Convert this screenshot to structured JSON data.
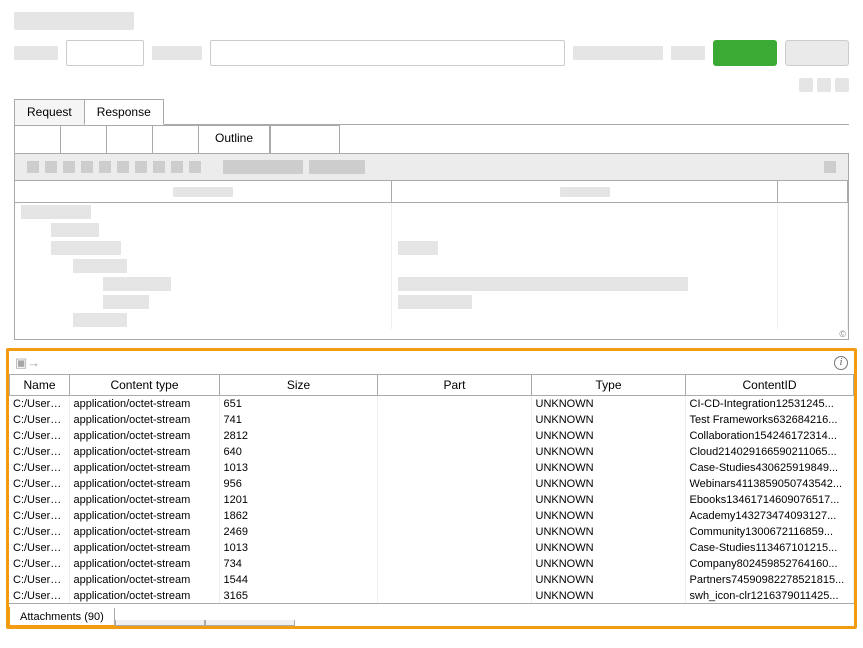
{
  "colors": {
    "highlight": "#f39c12",
    "green_btn": "#3aaa35",
    "skeleton": "#e5e5e5",
    "border": "#aaaaaa"
  },
  "tabs": {
    "request": "Request",
    "response": "Response",
    "outline": "Outline"
  },
  "tree_header_placeholders": [
    "",
    ""
  ],
  "attachments_toolbar": {
    "export_icon": "export-icon",
    "info_icon": "info-icon"
  },
  "att_columns": {
    "name": "Name",
    "content_type": "Content type",
    "size": "Size",
    "part": "Part",
    "type": "Type",
    "content_id": "ContentID"
  },
  "att_col_widths": {
    "name": 60,
    "content_type": 150,
    "size": 158,
    "part": 154,
    "type": 154,
    "content_id": 158
  },
  "att_rows": [
    {
      "name": "C:/Users/...",
      "content_type": "application/octet-stream",
      "size": "651",
      "part": "",
      "type": "UNKNOWN",
      "content_id": "CI-CD-Integration12531245..."
    },
    {
      "name": "C:/Users/...",
      "content_type": "application/octet-stream",
      "size": "741",
      "part": "",
      "type": "UNKNOWN",
      "content_id": "Test Frameworks632684216..."
    },
    {
      "name": "C:/Users/...",
      "content_type": "application/octet-stream",
      "size": "2812",
      "part": "",
      "type": "UNKNOWN",
      "content_id": "Collaboration154246172314..."
    },
    {
      "name": "C:/Users/...",
      "content_type": "application/octet-stream",
      "size": "640",
      "part": "",
      "type": "UNKNOWN",
      "content_id": "Cloud214029166590211065..."
    },
    {
      "name": "C:/Users/...",
      "content_type": "application/octet-stream",
      "size": "1013",
      "part": "",
      "type": "UNKNOWN",
      "content_id": "Case-Studies430625919849..."
    },
    {
      "name": "C:/Users/...",
      "content_type": "application/octet-stream",
      "size": "956",
      "part": "",
      "type": "UNKNOWN",
      "content_id": "Webinars411385905074354​2..."
    },
    {
      "name": "C:/Users/...",
      "content_type": "application/octet-stream",
      "size": "1201",
      "part": "",
      "type": "UNKNOWN",
      "content_id": "Ebooks13461714609076517..."
    },
    {
      "name": "C:/Users/...",
      "content_type": "application/octet-stream",
      "size": "1862",
      "part": "",
      "type": "UNKNOWN",
      "content_id": "Academy143273474093127..."
    },
    {
      "name": "C:/Users/...",
      "content_type": "application/octet-stream",
      "size": "2469",
      "part": "",
      "type": "UNKNOWN",
      "content_id": "Community1300672116859..."
    },
    {
      "name": "C:/Users/...",
      "content_type": "application/octet-stream",
      "size": "1013",
      "part": "",
      "type": "UNKNOWN",
      "content_id": "Case-Studies113467101215..."
    },
    {
      "name": "C:/Users/...",
      "content_type": "application/octet-stream",
      "size": "734",
      "part": "",
      "type": "UNKNOWN",
      "content_id": "Company802459852764160..."
    },
    {
      "name": "C:/Users/...",
      "content_type": "application/octet-stream",
      "size": "1544",
      "part": "",
      "type": "UNKNOWN",
      "content_id": "Partners74590982278521815..."
    },
    {
      "name": "C:/Users/...",
      "content_type": "application/octet-stream",
      "size": "3165",
      "part": "",
      "type": "UNKNOWN",
      "content_id": "swh_icon-clr1216379011425..."
    }
  ],
  "bottom_tabs": {
    "attachments": "Attachments (90)"
  },
  "attachments_count": 90
}
